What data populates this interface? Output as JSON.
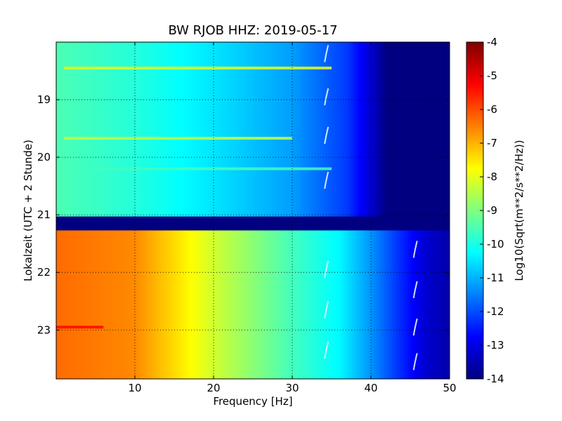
{
  "chart_data": {
    "type": "heatmap",
    "title": "BW RJOB HHZ: 2019-05-17",
    "xlabel": "Frequency [Hz]",
    "ylabel": "Lokalzeit (UTC + 2 Stunde)",
    "xlim": [
      0,
      50
    ],
    "ylim_top": 18.0,
    "ylim_bottom": 23.85,
    "y_inverted": true,
    "x_ticks": [
      "10",
      "20",
      "30",
      "40",
      "50"
    ],
    "y_ticks": [
      "19",
      "20",
      "21",
      "22",
      "23"
    ],
    "grid": true,
    "colormap": "jet",
    "colorbar": {
      "label": "Log10(Sqrt(m**2/s**2/Hz))",
      "range": [
        -14,
        -4
      ],
      "ticks": [
        "-4",
        "-5",
        "-6",
        "-7",
        "-8",
        "-9",
        "-10",
        "-11",
        "-12",
        "-13",
        "-14"
      ]
    },
    "data_gap": {
      "from_hour": 21.03,
      "to_hour": 21.27,
      "value": -14
    },
    "bands": [
      {
        "from_hour": 18.0,
        "to_hour": 21.03,
        "description": "level",
        "profile": [
          {
            "freq": 0,
            "value": -9.5
          },
          {
            "freq": 10,
            "value": -9.9
          },
          {
            "freq": 20,
            "value": -10.5
          },
          {
            "freq": 30,
            "value": -11.2
          },
          {
            "freq": 37,
            "value": -12.2
          },
          {
            "freq": 40,
            "value": -13.2
          },
          {
            "freq": 42,
            "value": -14.0
          },
          {
            "freq": 50,
            "value": -14.0
          }
        ]
      },
      {
        "from_hour": 21.27,
        "to_hour": 23.85,
        "description": "level",
        "profile": [
          {
            "freq": 0,
            "value": -6.3
          },
          {
            "freq": 10,
            "value": -6.6
          },
          {
            "freq": 15,
            "value": -7.4
          },
          {
            "freq": 20,
            "value": -8.2
          },
          {
            "freq": 30,
            "value": -9.6
          },
          {
            "freq": 36,
            "value": -10.3
          },
          {
            "freq": 40,
            "value": -11.3
          },
          {
            "freq": 44,
            "value": -12.4
          },
          {
            "freq": 47,
            "value": -13.2
          },
          {
            "freq": 50,
            "value": -13.6
          }
        ]
      }
    ],
    "highlights": [
      {
        "hour": 18.45,
        "freq_from": 1,
        "freq_to": 35,
        "value": -8.0
      },
      {
        "hour": 19.67,
        "freq_from": 1,
        "freq_to": 30,
        "value": -8.3
      },
      {
        "hour": 20.2,
        "freq_from": 1,
        "freq_to": 35,
        "value": -9.6
      },
      {
        "hour": 22.95,
        "freq_from": 0,
        "freq_to": 6,
        "value": -5.3
      }
    ],
    "tonal_lines": [
      {
        "freq": 34.3,
        "hours": [
          18.2,
          18.95,
          19.62,
          20.4,
          21.95,
          22.65,
          23.35
        ]
      },
      {
        "freq": 45.6,
        "hours": [
          21.6,
          22.3,
          22.95,
          23.55
        ]
      }
    ]
  }
}
